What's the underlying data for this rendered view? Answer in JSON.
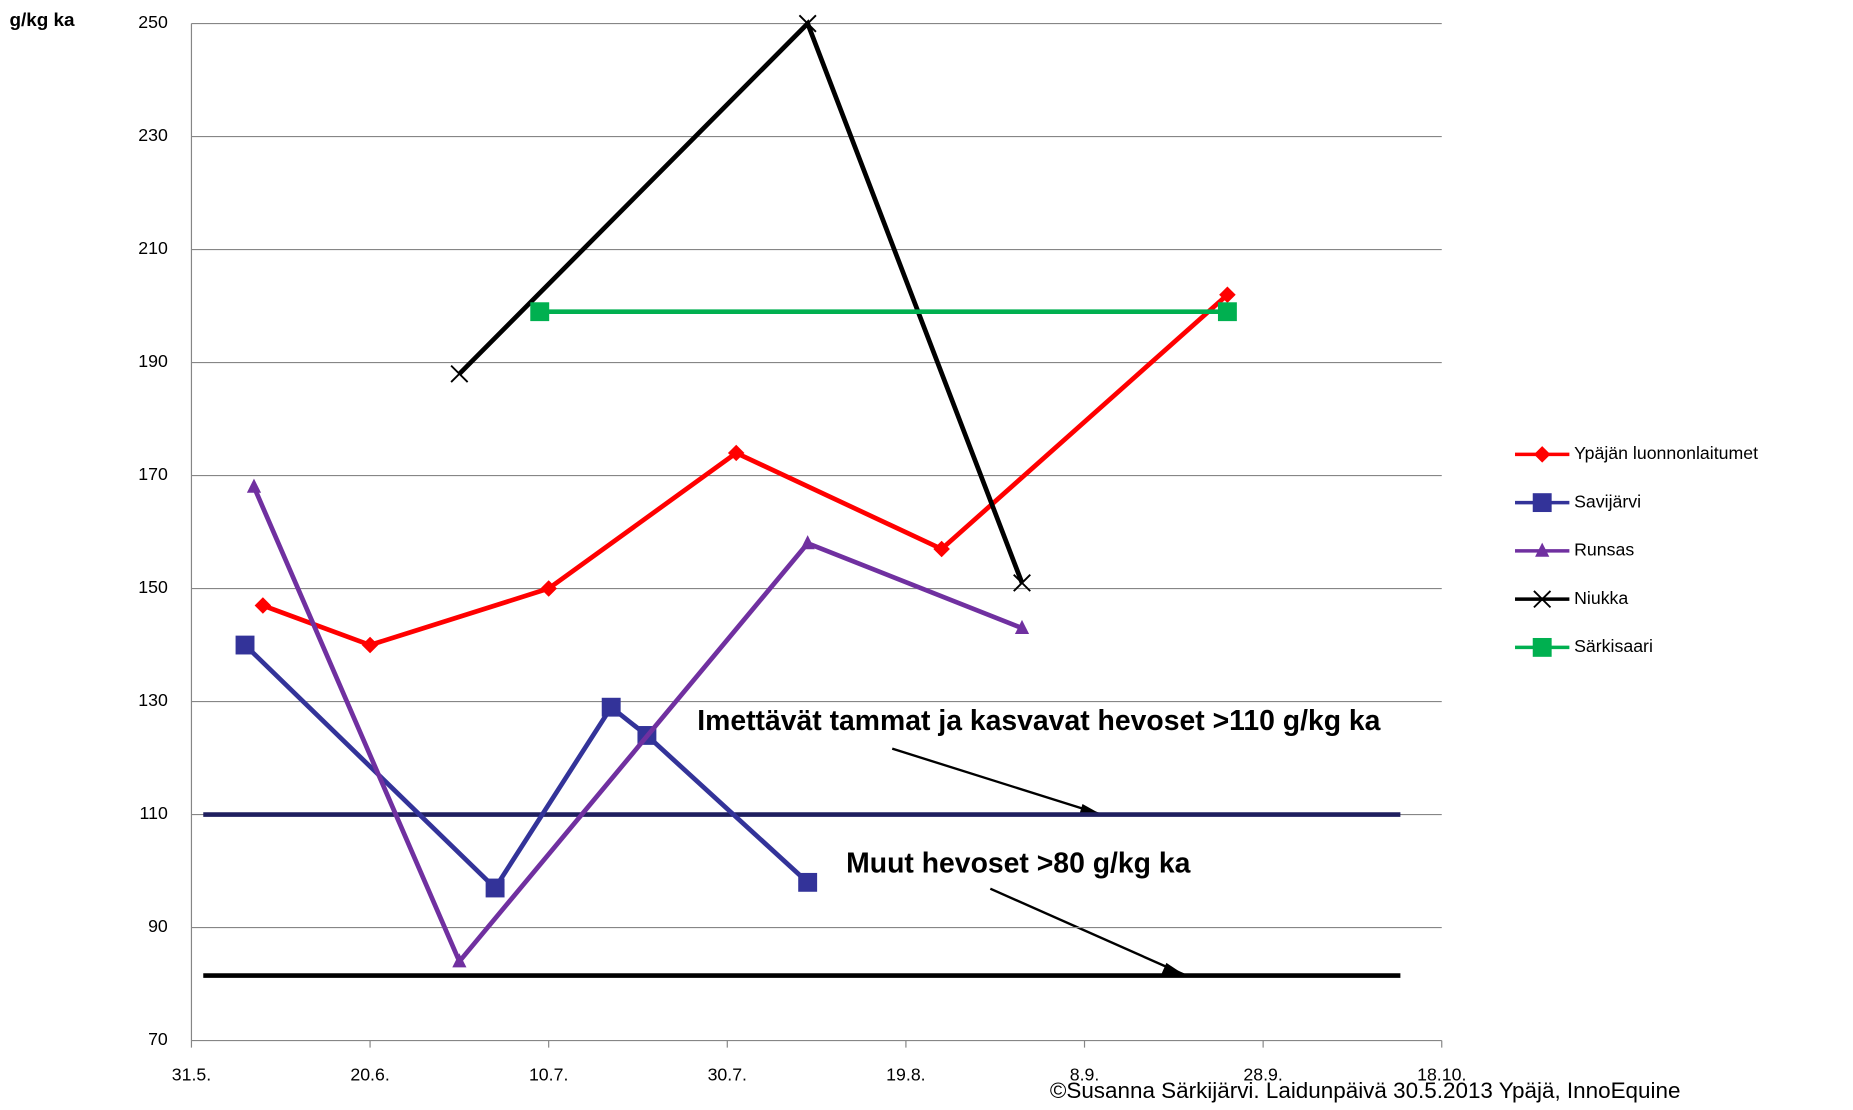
{
  "chart_data": {
    "type": "line",
    "y_label": "g/kg ka",
    "source": "©Susanna Särkijärvi. Laidunpäivä 30.5.2013 Ypäjä, InnoEquine",
    "xlim": [
      "31.5.",
      "18.10."
    ],
    "xticks": [
      "31.5.",
      "20.6.",
      "10.7.",
      "30.7.",
      "19.8.",
      "8.9.",
      "28.9.",
      "18.10."
    ],
    "ylim": [
      70,
      250
    ],
    "yticks": [
      70,
      90,
      110,
      130,
      150,
      170,
      190,
      210,
      230,
      250
    ],
    "grid": true,
    "legend": "right",
    "series": [
      {
        "name": "Ypäjän luonnonlaitumet",
        "color": "#ff0000",
        "marker": "diamond",
        "x": [
          "8.6.",
          "20.6.",
          "10.7.",
          "31.7.",
          "23.8.",
          "24.9."
        ],
        "values": [
          147,
          140,
          150,
          174,
          157,
          202
        ]
      },
      {
        "name": "Savijärvi",
        "color": "#333399",
        "marker": "square",
        "x": [
          "6.6.",
          "4.7.",
          "17.7.",
          "21.7.",
          "8.8."
        ],
        "values": [
          140,
          97,
          129,
          124,
          98
        ]
      },
      {
        "name": "Runsas",
        "color": "#7030a0",
        "marker": "triangle",
        "x": [
          "7.6.",
          "30.6.",
          "8.8.",
          "1.9."
        ],
        "values": [
          168,
          84,
          158,
          143
        ]
      },
      {
        "name": "Niukka",
        "color": "#000000",
        "marker": "x",
        "x": [
          "30.6.",
          "8.8.",
          "1.9."
        ],
        "values": [
          188,
          250,
          151
        ]
      },
      {
        "name": "Särkisaari",
        "color": "#00b050",
        "marker": "square",
        "x": [
          "9.7.",
          "24.9."
        ],
        "values": [
          199,
          199
        ]
      }
    ],
    "reference_lines": [
      {
        "value": 110,
        "color": "#1f1f5f",
        "label": "Imettävät tammat ja kasvavat hevoset >110 g/kg ka"
      },
      {
        "value": 81.5,
        "color": "#000000",
        "label": "Muut hevoset >80 g/kg ka"
      }
    ]
  }
}
